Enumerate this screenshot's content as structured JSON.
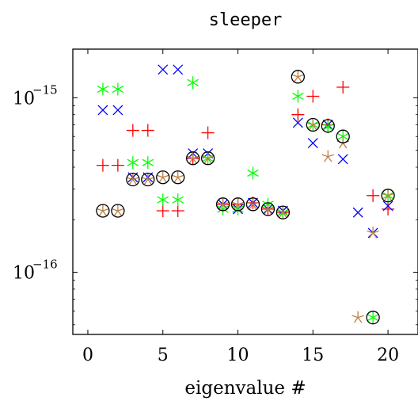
{
  "chart_data": {
    "type": "scatter",
    "title": "sleeper",
    "xlabel": "eigenvalue #",
    "ylabel": "",
    "xlim": [
      -1,
      22
    ],
    "ylim": [
      4.4e-17,
      1.9e-15
    ],
    "y_scale": "log",
    "x_ticks": [
      0,
      5,
      10,
      15,
      20
    ],
    "x_tick_labels": [
      "0",
      "5",
      "10",
      "15",
      "20"
    ],
    "y_ticks": [
      {
        "value": 1e-15,
        "base": "10",
        "exponent": "−15"
      },
      {
        "value": 1e-16,
        "base": "10",
        "exponent": "−16"
      }
    ],
    "grid": false,
    "legend": "none",
    "series": [
      {
        "marker": "plus",
        "color": "#ff0000",
        "points": [
          [
            1,
            4.1e-16
          ],
          [
            2,
            4.1e-16
          ],
          [
            3,
            6.5e-16
          ],
          [
            4,
            6.5e-16
          ],
          [
            5,
            2.25e-16
          ],
          [
            6,
            2.25e-16
          ],
          [
            7,
            4.5e-16
          ],
          [
            8,
            6.3e-16
          ],
          [
            9,
            2.45e-16
          ],
          [
            10,
            2.45e-16
          ],
          [
            11,
            2.5e-16
          ],
          [
            12,
            2.3e-16
          ],
          [
            13,
            2.2e-16
          ],
          [
            14,
            8e-16
          ],
          [
            15,
            1.02e-15
          ],
          [
            16,
            7e-16
          ],
          [
            17,
            1.15e-15
          ],
          [
            19,
            2.75e-16
          ],
          [
            20,
            2.3e-16
          ]
        ]
      },
      {
        "marker": "cross",
        "color": "#0000ff",
        "points": [
          [
            1,
            8.5e-16
          ],
          [
            2,
            8.5e-16
          ],
          [
            3,
            3.5e-16
          ],
          [
            4,
            3.5e-16
          ],
          [
            5,
            1.45e-15
          ],
          [
            6,
            1.45e-15
          ],
          [
            7,
            4.8e-16
          ],
          [
            8,
            4.8e-16
          ],
          [
            9,
            2.45e-16
          ],
          [
            10,
            2.3e-16
          ],
          [
            11,
            2.5e-16
          ],
          [
            12,
            2.3e-16
          ],
          [
            13,
            2.25e-16
          ],
          [
            14,
            7.2e-16
          ],
          [
            15,
            5.5e-16
          ],
          [
            16,
            7e-16
          ],
          [
            17,
            4.45e-16
          ],
          [
            18,
            2.2e-16
          ],
          [
            19,
            1.68e-16
          ],
          [
            20,
            2.4e-16
          ]
        ]
      },
      {
        "marker": "asterisk",
        "color": "#00ff00",
        "points": [
          [
            1,
            1.12e-15
          ],
          [
            2,
            1.12e-15
          ],
          [
            3,
            4.25e-16
          ],
          [
            4,
            4.25e-16
          ],
          [
            5,
            2.6e-16
          ],
          [
            6,
            2.6e-16
          ],
          [
            7,
            1.22e-15
          ],
          [
            8,
            4.5e-16
          ],
          [
            9,
            2.3e-16
          ],
          [
            10,
            2.3e-16
          ],
          [
            11,
            3.7e-16
          ],
          [
            12,
            2.45e-16
          ],
          [
            13,
            2.2e-16
          ],
          [
            14,
            1.02e-15
          ],
          [
            15,
            7e-16
          ],
          [
            16,
            6.8e-16
          ],
          [
            17,
            6e-16
          ],
          [
            19,
            5.5e-17
          ],
          [
            20,
            2.75e-16
          ]
        ]
      },
      {
        "marker": "star",
        "color": "#bf8040",
        "points": [
          [
            1,
            2.25e-16
          ],
          [
            2,
            2.25e-16
          ],
          [
            3,
            3.4e-16
          ],
          [
            4,
            3.4e-16
          ],
          [
            5,
            3.5e-16
          ],
          [
            6,
            3.5e-16
          ],
          [
            7,
            4.5e-16
          ],
          [
            8,
            4.5e-16
          ],
          [
            9,
            2.45e-16
          ],
          [
            10,
            2.45e-16
          ],
          [
            11,
            2.45e-16
          ],
          [
            12,
            2.3e-16
          ],
          [
            13,
            2.2e-16
          ],
          [
            14,
            1.32e-15
          ],
          [
            15,
            7e-16
          ],
          [
            16,
            4.6e-16
          ],
          [
            17,
            5.5e-16
          ],
          [
            18,
            5.5e-17
          ],
          [
            19,
            1.68e-16
          ],
          [
            20,
            2.75e-16
          ]
        ]
      },
      {
        "marker": "circle",
        "color": "#000000",
        "points": [
          [
            1,
            2.25e-16
          ],
          [
            2,
            2.25e-16
          ],
          [
            3,
            3.4e-16
          ],
          [
            4,
            3.4e-16
          ],
          [
            5,
            3.5e-16
          ],
          [
            6,
            3.5e-16
          ],
          [
            7,
            4.5e-16
          ],
          [
            8,
            4.5e-16
          ],
          [
            9,
            2.45e-16
          ],
          [
            10,
            2.45e-16
          ],
          [
            11,
            2.45e-16
          ],
          [
            12,
            2.3e-16
          ],
          [
            13,
            2.2e-16
          ],
          [
            14,
            1.32e-15
          ],
          [
            15,
            7e-16
          ],
          [
            16,
            6.9e-16
          ],
          [
            17,
            6e-16
          ],
          [
            19,
            5.5e-17
          ],
          [
            20,
            2.75e-16
          ]
        ]
      }
    ]
  }
}
